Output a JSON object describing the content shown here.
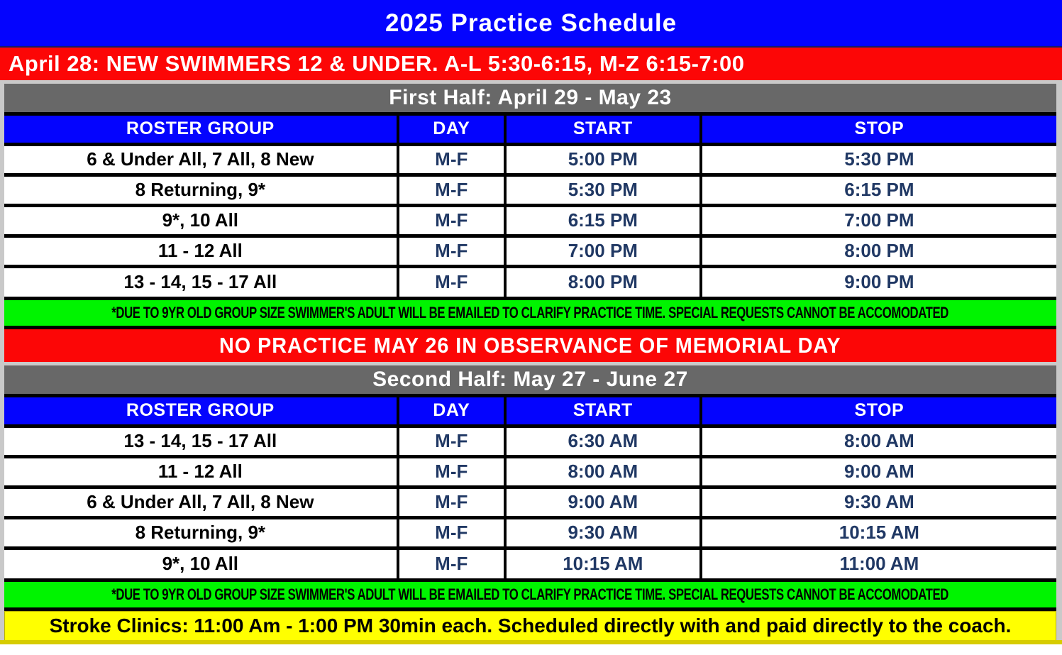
{
  "title": "2025 Practice Schedule",
  "announcement": "April 28: NEW SWIMMERS 12 & UNDER. A-L 5:30-6:15, M-Z 6:15-7:00",
  "first_half": {
    "heading": "First Half: April 29 - May 23",
    "columns": {
      "group": "ROSTER GROUP",
      "day": "DAY",
      "start": "START",
      "stop": "STOP"
    },
    "rows": [
      {
        "group": "6 & Under All, 7 All, 8 New",
        "day": "M-F",
        "start": "5:00 PM",
        "stop": "5:30 PM"
      },
      {
        "group": "8 Returning, 9*",
        "day": "M-F",
        "start": "5:30 PM",
        "stop": "6:15 PM"
      },
      {
        "group": "9*, 10 All",
        "day": "M-F",
        "start": "6:15 PM",
        "stop": "7:00 PM"
      },
      {
        "group": "11 - 12 All",
        "day": "M-F",
        "start": "7:00 PM",
        "stop": "8:00 PM"
      },
      {
        "group": "13 - 14, 15 - 17 All",
        "day": "M-F",
        "start": "8:00 PM",
        "stop": "9:00 PM"
      }
    ],
    "note": "*DUE TO 9YR OLD GROUP SIZE SWIMMER'S ADULT WILL BE EMAILED TO CLARIFY PRACTICE TIME. SPECIAL REQUESTS CANNOT BE ACCOMODATED"
  },
  "no_practice_banner": "NO PRACTICE MAY 26 IN OBSERVANCE OF MEMORIAL DAY",
  "second_half": {
    "heading": "Second Half: May 27 - June 27",
    "columns": {
      "group": "ROSTER GROUP",
      "day": "DAY",
      "start": "START",
      "stop": "STOP"
    },
    "rows": [
      {
        "group": "13 - 14, 15 - 17 All",
        "day": "M-F",
        "start": "6:30 AM",
        "stop": "8:00 AM"
      },
      {
        "group": "11 - 12 All",
        "day": "M-F",
        "start": "8:00 AM",
        "stop": "9:00 AM"
      },
      {
        "group": "6 & Under All, 7 All, 8 New",
        "day": "M-F",
        "start": "9:00 AM",
        "stop": "9:30 AM"
      },
      {
        "group": "8 Returning, 9*",
        "day": "M-F",
        "start": "9:30 AM",
        "stop": "10:15 AM"
      },
      {
        "group": "9*, 10 All",
        "day": "M-F",
        "start": "10:15 AM",
        "stop": "11:00 AM"
      }
    ],
    "note": "*DUE TO 9YR OLD GROUP SIZE SWIMMER'S ADULT WILL BE EMAILED TO CLARIFY PRACTICE TIME. SPECIAL REQUESTS CANNOT BE ACCOMODATED"
  },
  "stroke_clinics": "Stroke Clinics: 11:00 Am - 1:00 PM 30min each. Scheduled directly with and paid directly to the coach.",
  "colors": {
    "blue": "#0404FE",
    "red": "#FC0606",
    "gray": "#686868",
    "green": "#00F400",
    "yellow": "#FFFF00",
    "navy_text": "#203864"
  }
}
